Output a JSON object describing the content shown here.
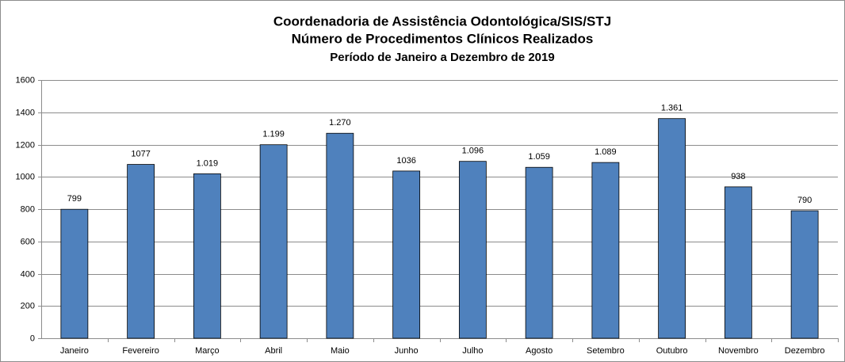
{
  "chart_data": {
    "type": "bar",
    "title": "Coordenadoria de Assistência Odontológica/SIS/STJ",
    "subtitle": [
      "Número de Procedimentos Clínicos Realizados",
      "Período de Janeiro a Dezembro de 2019"
    ],
    "categories": [
      "Janeiro",
      "Fevereiro",
      "Março",
      "Abril",
      "Maio",
      "Junho",
      "Julho",
      "Agosto",
      "Setembro",
      "Outubro",
      "Novembro",
      "Dezembro"
    ],
    "values": [
      799,
      1077,
      1019,
      1199,
      1270,
      1036,
      1096,
      1059,
      1089,
      1361,
      938,
      790
    ],
    "value_labels": [
      "799",
      "1077",
      "1.019",
      "1.199",
      "1.270",
      "1036",
      "1.096",
      "1.059",
      "1.089",
      "1.361",
      "938",
      "790"
    ],
    "color": "#4f81bd",
    "ylim": [
      0,
      1600
    ],
    "yticks": [
      0,
      200,
      400,
      600,
      800,
      1000,
      1200,
      1400,
      1600
    ],
    "grid": true
  }
}
